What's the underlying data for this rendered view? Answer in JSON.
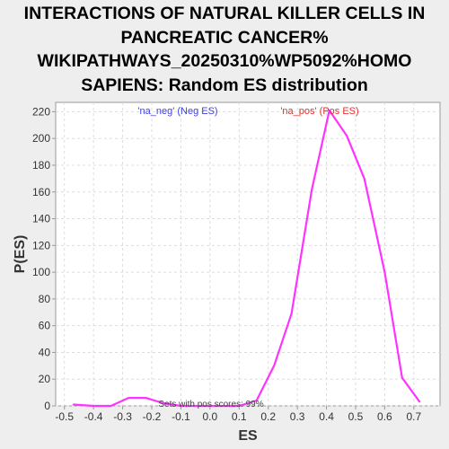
{
  "chart_data": {
    "type": "line",
    "title_lines": [
      "INTERACTIONS OF NATURAL KILLER CELLS IN",
      "PANCREATIC CANCER%",
      "WIKIPATHWAYS_20250310%WP5092%HOMO",
      "SAPIENS: Random ES distribution"
    ],
    "xlabel": "ES",
    "ylabel": "P(ES)",
    "xlim": [
      -0.53,
      0.79
    ],
    "ylim": [
      0,
      227
    ],
    "xticks": [
      "-0.5",
      "-0.4",
      "-0.3",
      "-0.2",
      "-0.1",
      "0.0",
      "0.1",
      "0.2",
      "0.3",
      "0.4",
      "0.5",
      "0.6",
      "0.7"
    ],
    "yticks": [
      "0",
      "20",
      "40",
      "60",
      "80",
      "100",
      "120",
      "140",
      "160",
      "180",
      "200",
      "220"
    ],
    "grid": true,
    "legend": [
      {
        "label": "'na_neg' (Neg ES)",
        "color": "#4040e0",
        "position": "top-left"
      },
      {
        "label": "'na_pos' (Pos ES)",
        "color": "#e03030",
        "position": "top-center"
      }
    ],
    "annotation": "Sets with pos scores: 99%",
    "series": [
      {
        "color": "#ff33ff",
        "x": [
          -0.47,
          -0.4,
          -0.34,
          -0.28,
          -0.22,
          -0.16,
          -0.1,
          -0.03,
          0.03,
          0.1,
          0.16,
          0.22,
          0.28,
          0.35,
          0.41,
          0.47,
          0.53,
          0.6,
          0.66,
          0.72
        ],
        "y": [
          1,
          0,
          0,
          6,
          6,
          2,
          0,
          0,
          0,
          0,
          4,
          30,
          69,
          162,
          221,
          202,
          170,
          100,
          21,
          3
        ]
      }
    ]
  }
}
